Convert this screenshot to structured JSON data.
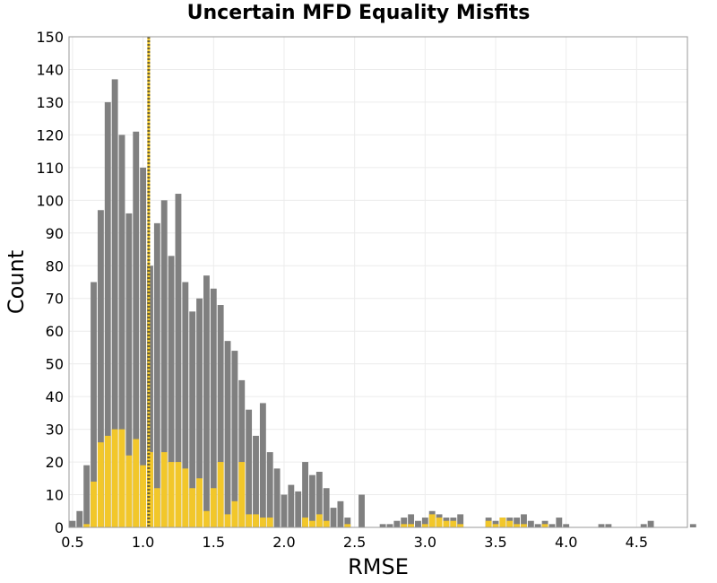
{
  "chart_data": {
    "type": "bar",
    "title": "Uncertain MFD Equality Misfits",
    "xlabel": "RMSE",
    "ylabel": "Count",
    "xlim": [
      0.475,
      4.86
    ],
    "ylim": [
      0,
      150
    ],
    "bin_width": 0.05,
    "grid": true,
    "xticks": [
      0.5,
      1.0,
      1.5,
      2.0,
      2.5,
      3.0,
      3.5,
      4.0,
      4.5
    ],
    "xtick_labels": [
      "0.5",
      "1.0",
      "1.5",
      "2.0",
      "2.5",
      "3.0",
      "3.5",
      "4.0",
      "4.5"
    ],
    "yticks": [
      0,
      10,
      20,
      30,
      40,
      50,
      60,
      70,
      80,
      90,
      100,
      110,
      120,
      130,
      140,
      150
    ],
    "ytick_labels": [
      "0",
      "10",
      "20",
      "30",
      "40",
      "50",
      "60",
      "70",
      "80",
      "90",
      "100",
      "110",
      "120",
      "130",
      "140",
      "150"
    ],
    "vline_x": 1.04,
    "colors": {
      "total": "#808080",
      "subset": "#f2c72a",
      "vline": "#6b6230",
      "grid": "#ececec",
      "frame": "#999999"
    },
    "series": [
      {
        "values": [
          2,
          5,
          19,
          75,
          97,
          130,
          137,
          120,
          96,
          121,
          110,
          80,
          93,
          100,
          83,
          102,
          75,
          66,
          70,
          77,
          73,
          68,
          57,
          54,
          45,
          36,
          28,
          38,
          23,
          18,
          10,
          13,
          11,
          20,
          16,
          17,
          12,
          6,
          8,
          3,
          0,
          10,
          0,
          0,
          1,
          1,
          2,
          3,
          4,
          2,
          3,
          5,
          4,
          3,
          3,
          4,
          0,
          0,
          0,
          3,
          2,
          3,
          3,
          3,
          4,
          2,
          1,
          2,
          1,
          3,
          1,
          0,
          0,
          0,
          0,
          1,
          1,
          0,
          0,
          0,
          0,
          1,
          2,
          0,
          0,
          0,
          0,
          0,
          1
        ],
        "x_start": 0.475
      },
      {
        "values": [
          0,
          0,
          1,
          14,
          26,
          28,
          30,
          30,
          22,
          27,
          19,
          23,
          12,
          23,
          20,
          20,
          18,
          12,
          15,
          5,
          12,
          20,
          4,
          8,
          20,
          4,
          4,
          3,
          3,
          0,
          0,
          0,
          0,
          3,
          2,
          4,
          2,
          0,
          0,
          1,
          0,
          0,
          0,
          0,
          0,
          0,
          0,
          1,
          1,
          0,
          1,
          4,
          3,
          2,
          2,
          1,
          0,
          0,
          0,
          2,
          1,
          3,
          2,
          1,
          1,
          0,
          0,
          1,
          0,
          0,
          0,
          0,
          0,
          0,
          0,
          0,
          0,
          0,
          0,
          0,
          0,
          0,
          0,
          0,
          0,
          0,
          0,
          0,
          0
        ],
        "x_start": 0.475
      }
    ]
  }
}
